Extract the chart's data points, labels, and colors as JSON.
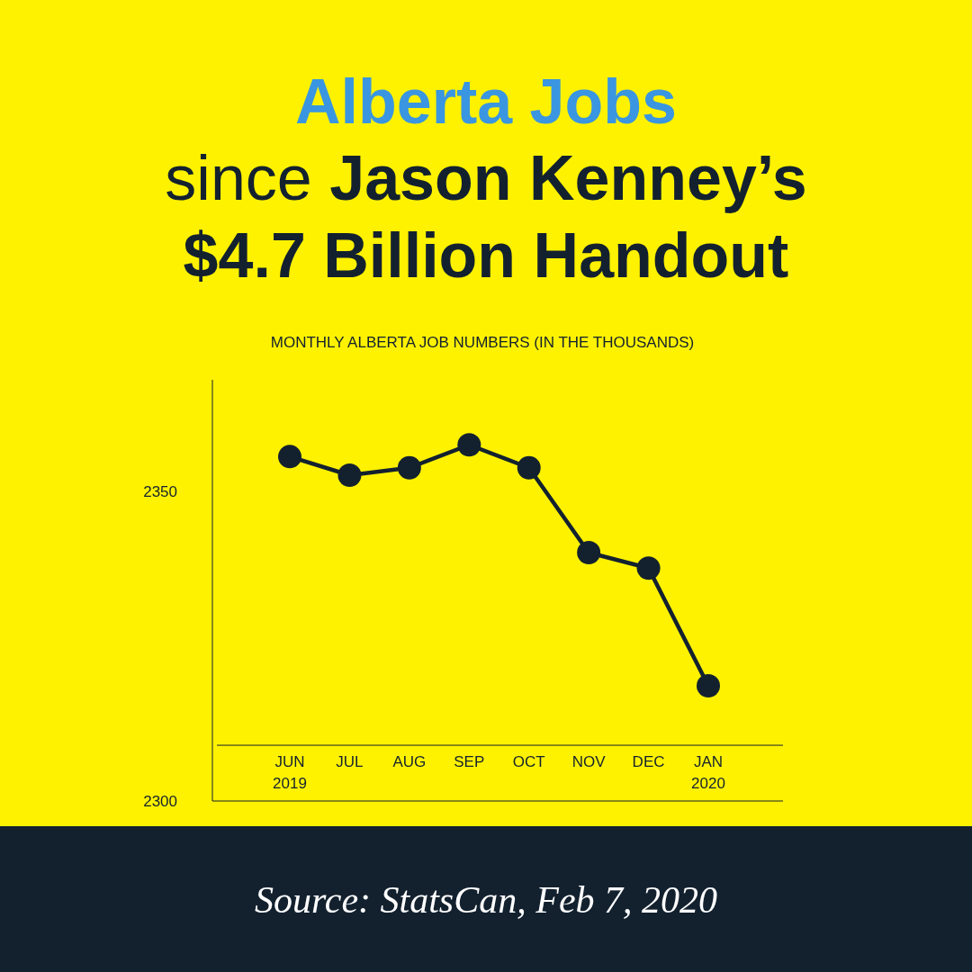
{
  "chart_data": {
    "type": "line",
    "title": "Alberta Jobs",
    "subtitle": "since Jason Kenney’s $4.7 Billion Handout",
    "ylabel": "MONTHLY ALBERTA JOB NUMBERS  (IN THE THOUSANDS)",
    "categories": [
      "JUN\n2019",
      "JUL",
      "AUG",
      "SEP",
      "OCT",
      "NOV",
      "DEC",
      "JAN\n2020"
    ],
    "series": [
      {
        "color": "#13212f",
        "values": [
          2355.6,
          2352.6,
          2353.8,
          2357.5,
          2353.8,
          2340.1,
          2337.6,
          2318.6
        ]
      }
    ],
    "ylim": [
      2300,
      2368
    ],
    "yticks": [
      2300,
      2350
    ],
    "grid": false,
    "marker": "circle",
    "line_style": "solid",
    "ref_lines": [
      {
        "axis": "y",
        "value": 2309,
        "color": "#13212f"
      }
    ],
    "annotations": [
      "Source: StatsCan, Feb 7, 2020"
    ]
  }
}
